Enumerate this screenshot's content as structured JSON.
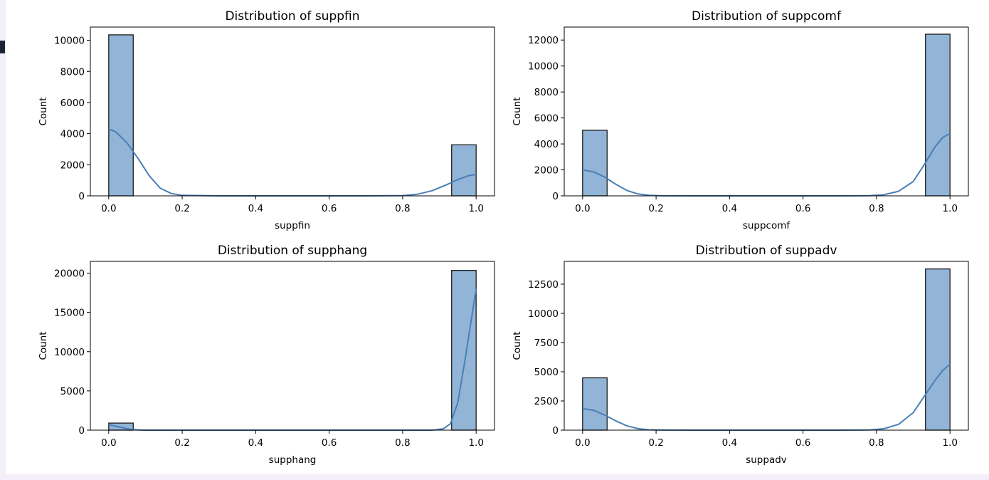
{
  "chart_data": [
    {
      "type": "histogram",
      "title": "Distribution of suppfin",
      "xlabel": "suppfin",
      "ylabel": "Count",
      "xlim": [
        -0.05,
        1.05
      ],
      "ylim": [
        0,
        10850
      ],
      "xticks": [
        0.0,
        0.2,
        0.4,
        0.6,
        0.8,
        1.0
      ],
      "xtick_labels": [
        "0.0",
        "0.2",
        "0.4",
        "0.6",
        "0.8",
        "1.0"
      ],
      "yticks": [
        0,
        2000,
        4000,
        6000,
        8000,
        10000
      ],
      "ytick_labels": [
        "0",
        "2000",
        "4000",
        "6000",
        "8000",
        "10000"
      ],
      "bin_width": 0.0667,
      "bars": [
        {
          "x": 0.0,
          "count": 10350
        },
        {
          "x": 0.9333,
          "count": 3280
        }
      ],
      "kde": [
        [
          0.0,
          4300
        ],
        [
          0.02,
          4100
        ],
        [
          0.05,
          3400
        ],
        [
          0.08,
          2400
        ],
        [
          0.11,
          1300
        ],
        [
          0.14,
          500
        ],
        [
          0.17,
          150
        ],
        [
          0.2,
          30
        ],
        [
          0.3,
          0
        ],
        [
          0.5,
          0
        ],
        [
          0.7,
          0
        ],
        [
          0.8,
          20
        ],
        [
          0.84,
          100
        ],
        [
          0.88,
          330
        ],
        [
          0.92,
          720
        ],
        [
          0.95,
          1050
        ],
        [
          0.98,
          1300
        ],
        [
          1.0,
          1380
        ]
      ],
      "grid": false,
      "legend": "none",
      "bar_color": "#92b4d7",
      "line_color": "#4a7fb5"
    },
    {
      "type": "histogram",
      "title": "Distribution of suppcomf",
      "xlabel": "suppcomf",
      "ylabel": "Count",
      "xlim": [
        -0.05,
        1.05
      ],
      "ylim": [
        0,
        13000
      ],
      "xticks": [
        0.0,
        0.2,
        0.4,
        0.6,
        0.8,
        1.0
      ],
      "xtick_labels": [
        "0.0",
        "0.2",
        "0.4",
        "0.6",
        "0.8",
        "1.0"
      ],
      "yticks": [
        0,
        2000,
        4000,
        6000,
        8000,
        10000,
        12000
      ],
      "ytick_labels": [
        "0",
        "2000",
        "4000",
        "6000",
        "8000",
        "10000",
        "12000"
      ],
      "bin_width": 0.0667,
      "bars": [
        {
          "x": 0.0,
          "count": 5050
        },
        {
          "x": 0.9333,
          "count": 12450
        }
      ],
      "kde": [
        [
          0.0,
          2000
        ],
        [
          0.03,
          1850
        ],
        [
          0.06,
          1450
        ],
        [
          0.09,
          900
        ],
        [
          0.12,
          420
        ],
        [
          0.15,
          150
        ],
        [
          0.18,
          40
        ],
        [
          0.22,
          5
        ],
        [
          0.3,
          0
        ],
        [
          0.5,
          0
        ],
        [
          0.7,
          0
        ],
        [
          0.78,
          10
        ],
        [
          0.82,
          80
        ],
        [
          0.86,
          350
        ],
        [
          0.9,
          1100
        ],
        [
          0.93,
          2400
        ],
        [
          0.96,
          3800
        ],
        [
          0.98,
          4500
        ],
        [
          1.0,
          4800
        ]
      ],
      "grid": false,
      "legend": "none",
      "bar_color": "#92b4d7",
      "line_color": "#4a7fb5"
    },
    {
      "type": "histogram",
      "title": "Distribution of supphang",
      "xlabel": "supphang",
      "ylabel": "Count",
      "xlim": [
        -0.05,
        1.05
      ],
      "ylim": [
        0,
        21500
      ],
      "xticks": [
        0.0,
        0.2,
        0.4,
        0.6,
        0.8,
        1.0
      ],
      "xtick_labels": [
        "0.0",
        "0.2",
        "0.4",
        "0.6",
        "0.8",
        "1.0"
      ],
      "yticks": [
        0,
        5000,
        10000,
        15000,
        20000
      ],
      "ytick_labels": [
        "0",
        "5000",
        "10000",
        "15000",
        "20000"
      ],
      "bin_width": 0.0667,
      "bars": [
        {
          "x": 0.0,
          "count": 900
        },
        {
          "x": 0.9333,
          "count": 20350
        }
      ],
      "kde": [
        [
          0.0,
          700
        ],
        [
          0.02,
          500
        ],
        [
          0.04,
          280
        ],
        [
          0.06,
          100
        ],
        [
          0.08,
          20
        ],
        [
          0.1,
          0
        ],
        [
          0.5,
          0
        ],
        [
          0.88,
          0
        ],
        [
          0.91,
          150
        ],
        [
          0.93,
          800
        ],
        [
          0.95,
          3500
        ],
        [
          0.97,
          9000
        ],
        [
          0.99,
          15000
        ],
        [
          1.0,
          18000
        ]
      ],
      "grid": false,
      "legend": "none",
      "bar_color": "#92b4d7",
      "line_color": "#4a7fb5"
    },
    {
      "type": "histogram",
      "title": "Distribution of suppadv",
      "xlabel": "suppadv",
      "ylabel": "Count",
      "xlim": [
        -0.05,
        1.05
      ],
      "ylim": [
        0,
        14450
      ],
      "xticks": [
        0.0,
        0.2,
        0.4,
        0.6,
        0.8,
        1.0
      ],
      "xtick_labels": [
        "0.0",
        "0.2",
        "0.4",
        "0.6",
        "0.8",
        "1.0"
      ],
      "yticks": [
        0,
        2500,
        5000,
        7500,
        10000,
        12500
      ],
      "ytick_labels": [
        "0",
        "2500",
        "5000",
        "7500",
        "10000",
        "12500"
      ],
      "bin_width": 0.0667,
      "bars": [
        {
          "x": 0.0,
          "count": 4480
        },
        {
          "x": 0.9333,
          "count": 13800
        }
      ],
      "kde": [
        [
          0.0,
          1850
        ],
        [
          0.03,
          1700
        ],
        [
          0.06,
          1300
        ],
        [
          0.09,
          800
        ],
        [
          0.12,
          380
        ],
        [
          0.15,
          130
        ],
        [
          0.18,
          30
        ],
        [
          0.22,
          5
        ],
        [
          0.3,
          0
        ],
        [
          0.5,
          0
        ],
        [
          0.7,
          0
        ],
        [
          0.78,
          20
        ],
        [
          0.82,
          120
        ],
        [
          0.86,
          500
        ],
        [
          0.9,
          1500
        ],
        [
          0.93,
          2900
        ],
        [
          0.96,
          4300
        ],
        [
          0.98,
          5100
        ],
        [
          1.0,
          5650
        ]
      ],
      "grid": false,
      "legend": "none",
      "bar_color": "#92b4d7",
      "line_color": "#4a7fb5"
    }
  ]
}
